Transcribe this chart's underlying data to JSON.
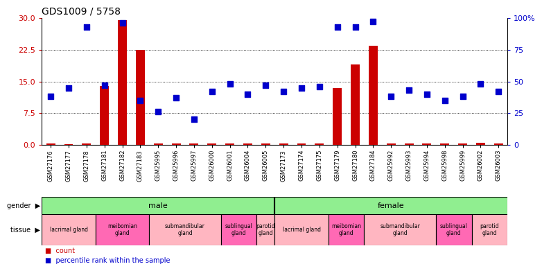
{
  "title": "GDS1009 / 5758",
  "samples": [
    "GSM27176",
    "GSM27177",
    "GSM27178",
    "GSM27181",
    "GSM27182",
    "GSM27183",
    "GSM25995",
    "GSM25996",
    "GSM25997",
    "GSM26000",
    "GSM26001",
    "GSM26004",
    "GSM26005",
    "GSM27173",
    "GSM27174",
    "GSM27175",
    "GSM27179",
    "GSM27180",
    "GSM27184",
    "GSM25992",
    "GSM25993",
    "GSM25994",
    "GSM25998",
    "GSM25999",
    "GSM26002",
    "GSM26003"
  ],
  "count_values": [
    0.3,
    0.2,
    0.3,
    14.0,
    29.5,
    22.5,
    0.3,
    0.3,
    0.3,
    0.3,
    0.3,
    0.3,
    0.3,
    0.3,
    0.3,
    0.3,
    13.5,
    19.0,
    23.5,
    0.3,
    0.3,
    0.3,
    0.3,
    0.3,
    0.5,
    0.3
  ],
  "percentile_values": [
    38,
    45,
    93,
    47,
    96,
    35,
    26,
    37,
    20,
    42,
    48,
    40,
    47,
    42,
    45,
    46,
    93,
    93,
    97,
    38,
    43,
    40,
    35,
    38,
    48,
    42
  ],
  "ylim_left": [
    0,
    30
  ],
  "ylim_right": [
    0,
    100
  ],
  "yticks_left": [
    0,
    7.5,
    15,
    22.5,
    30
  ],
  "yticks_right": [
    0,
    25,
    50,
    75,
    100
  ],
  "ytick_labels_right": [
    "0",
    "25",
    "50",
    "75",
    "100%"
  ],
  "count_color": "#cc0000",
  "dot_color": "#0000cc",
  "gender_groups": [
    {
      "label": "male",
      "start": 0,
      "end": 13,
      "color": "#90EE90"
    },
    {
      "label": "female",
      "start": 13,
      "end": 26,
      "color": "#90EE90"
    }
  ],
  "tissue_groups": [
    {
      "label": "lacrimal gland",
      "start": 0,
      "end": 3,
      "color": "#FFB6C1"
    },
    {
      "label": "meibomian\ngland",
      "start": 3,
      "end": 6,
      "color": "#FF69B4"
    },
    {
      "label": "submandibular\ngland",
      "start": 6,
      "end": 10,
      "color": "#FFB6C1"
    },
    {
      "label": "sublingual\ngland",
      "start": 10,
      "end": 12,
      "color": "#FF69B4"
    },
    {
      "label": "parotid\ngland",
      "start": 12,
      "end": 13,
      "color": "#FFB6C1"
    },
    {
      "label": "lacrimal gland",
      "start": 13,
      "end": 16,
      "color": "#FFB6C1"
    },
    {
      "label": "meibomian\ngland",
      "start": 16,
      "end": 18,
      "color": "#FF69B4"
    },
    {
      "label": "submandibular\ngland",
      "start": 18,
      "end": 22,
      "color": "#FFB6C1"
    },
    {
      "label": "sublingual\ngland",
      "start": 22,
      "end": 24,
      "color": "#FF69B4"
    },
    {
      "label": "parotid\ngland",
      "start": 24,
      "end": 26,
      "color": "#FFB6C1"
    }
  ],
  "legend_items": [
    {
      "label": "count",
      "color": "#cc0000"
    },
    {
      "label": "percentile rank within the sample",
      "color": "#0000cc"
    }
  ],
  "bar_width": 0.5,
  "dot_size": 30,
  "bg_color": "#ffffff",
  "plot_bg": "#ffffff",
  "grid_color": "#000000",
  "spine_color": "#000000",
  "tick_label_color_left": "#cc0000",
  "tick_label_color_right": "#0000cc"
}
